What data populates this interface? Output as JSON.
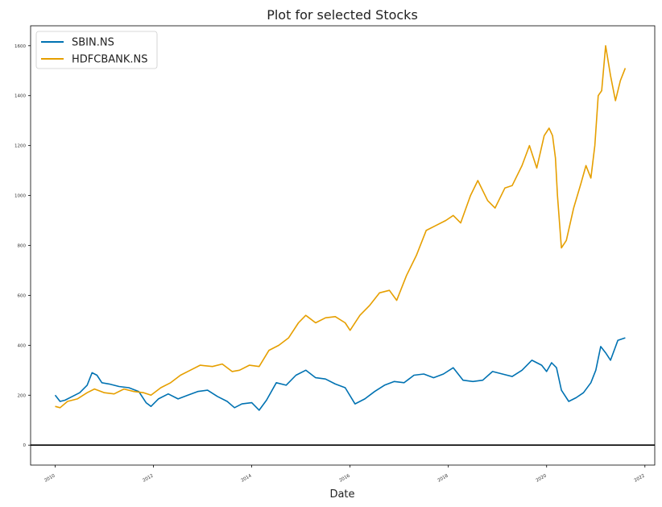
{
  "chart_data": {
    "type": "line",
    "title": "Plot for selected Stocks",
    "xlabel": "Date",
    "ylabel": "",
    "xlim": [
      2009.5,
      2022.2
    ],
    "ylim": [
      -80,
      1680
    ],
    "x_ticks": [
      2010,
      2012,
      2014,
      2016,
      2018,
      2020,
      2022
    ],
    "x_tick_labels": [
      "2010",
      "2012",
      "2014",
      "2016",
      "2018",
      "2020",
      "2022"
    ],
    "y_ticks": [
      0,
      200,
      400,
      600,
      800,
      1000,
      1200,
      1400,
      1600
    ],
    "y_tick_labels": [
      "0",
      "200",
      "400",
      "600",
      "800",
      "1000",
      "1200",
      "1400",
      "1600"
    ],
    "hline": 0,
    "legend_position": "upper-left",
    "grid": false,
    "series": [
      {
        "name": "SBIN.NS",
        "color": "#0072b2",
        "x": [
          2010.0,
          2010.1,
          2010.2,
          2010.35,
          2010.5,
          2010.65,
          2010.75,
          2010.85,
          2010.95,
          2011.1,
          2011.3,
          2011.5,
          2011.7,
          2011.85,
          2011.95,
          2012.1,
          2012.3,
          2012.5,
          2012.7,
          2012.9,
          2013.1,
          2013.3,
          2013.5,
          2013.65,
          2013.8,
          2014.0,
          2014.15,
          2014.3,
          2014.5,
          2014.7,
          2014.9,
          2015.1,
          2015.3,
          2015.5,
          2015.7,
          2015.9,
          2016.1,
          2016.3,
          2016.5,
          2016.7,
          2016.9,
          2017.1,
          2017.3,
          2017.5,
          2017.7,
          2017.9,
          2018.1,
          2018.3,
          2018.5,
          2018.7,
          2018.9,
          2019.1,
          2019.3,
          2019.5,
          2019.7,
          2019.9,
          2020.0,
          2020.1,
          2020.2,
          2020.3,
          2020.45,
          2020.6,
          2020.75,
          2020.9,
          2021.0,
          2021.1,
          2021.2,
          2021.3,
          2021.45,
          2021.6
        ],
        "values": [
          200,
          175,
          180,
          195,
          210,
          240,
          290,
          280,
          250,
          245,
          235,
          230,
          215,
          170,
          155,
          185,
          205,
          185,
          200,
          215,
          220,
          195,
          175,
          150,
          165,
          170,
          140,
          180,
          250,
          240,
          280,
          300,
          270,
          265,
          245,
          230,
          165,
          185,
          215,
          240,
          255,
          250,
          280,
          285,
          270,
          285,
          310,
          260,
          255,
          260,
          295,
          285,
          275,
          300,
          340,
          320,
          295,
          330,
          310,
          220,
          175,
          190,
          210,
          250,
          300,
          395,
          370,
          340,
          420,
          430
        ]
      },
      {
        "name": "HDFCBANK.NS",
        "color": "#e69f00",
        "x": [
          2010.0,
          2010.1,
          2010.25,
          2010.45,
          2010.65,
          2010.8,
          2011.0,
          2011.2,
          2011.4,
          2011.6,
          2011.8,
          2011.95,
          2012.15,
          2012.35,
          2012.55,
          2012.75,
          2012.95,
          2013.2,
          2013.4,
          2013.6,
          2013.75,
          2013.95,
          2014.15,
          2014.35,
          2014.55,
          2014.75,
          2014.95,
          2015.1,
          2015.3,
          2015.5,
          2015.7,
          2015.9,
          2016.0,
          2016.2,
          2016.4,
          2016.6,
          2016.8,
          2016.95,
          2017.15,
          2017.35,
          2017.55,
          2017.75,
          2017.95,
          2018.1,
          2018.25,
          2018.45,
          2018.6,
          2018.8,
          2018.95,
          2019.15,
          2019.3,
          2019.5,
          2019.65,
          2019.8,
          2019.95,
          2020.05,
          2020.12,
          2020.18,
          2020.22,
          2020.3,
          2020.4,
          2020.55,
          2020.7,
          2020.8,
          2020.9,
          2020.98,
          2021.05,
          2021.12,
          2021.2,
          2021.3,
          2021.4,
          2021.5,
          2021.6
        ],
        "values": [
          155,
          150,
          175,
          185,
          210,
          225,
          210,
          205,
          225,
          215,
          210,
          200,
          230,
          250,
          280,
          300,
          320,
          315,
          325,
          295,
          300,
          320,
          315,
          380,
          400,
          430,
          490,
          520,
          490,
          510,
          515,
          490,
          460,
          520,
          560,
          610,
          620,
          580,
          680,
          760,
          860,
          880,
          900,
          920,
          890,
          1000,
          1060,
          980,
          950,
          1030,
          1040,
          1120,
          1200,
          1110,
          1240,
          1270,
          1240,
          1150,
          1000,
          790,
          820,
          950,
          1050,
          1120,
          1070,
          1200,
          1400,
          1420,
          1600,
          1480,
          1380,
          1460,
          1510
        ]
      }
    ]
  }
}
